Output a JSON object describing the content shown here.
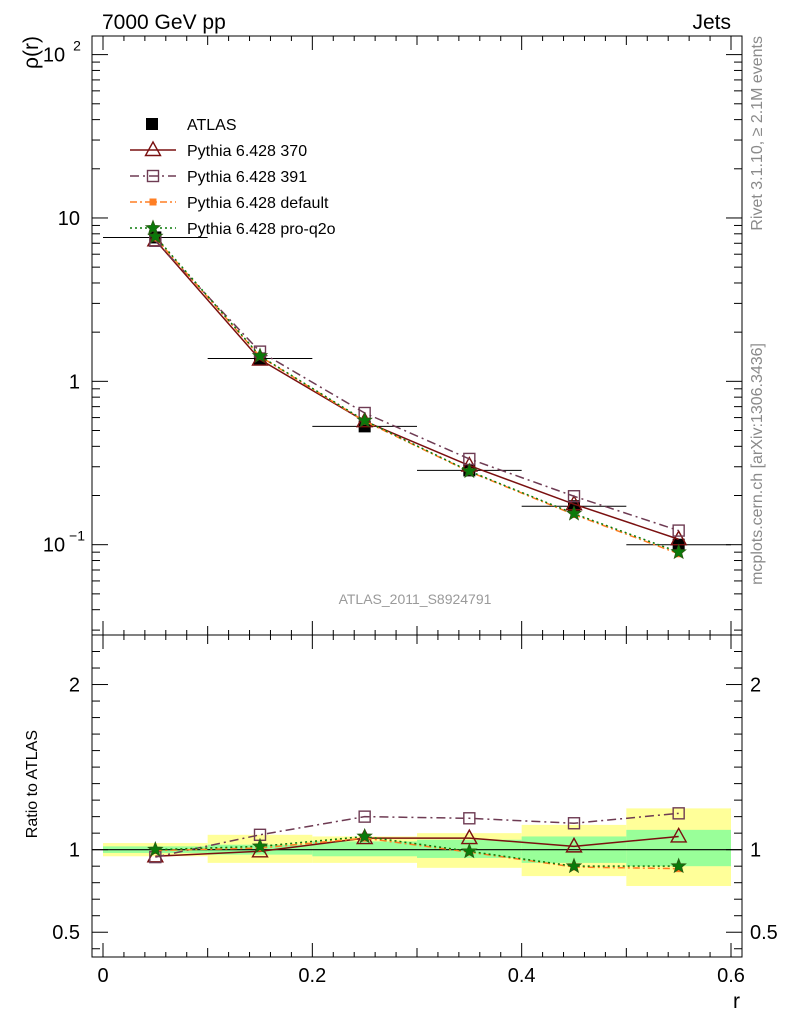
{
  "header": {
    "left": "7000 GeV pp",
    "right": "Jets"
  },
  "side": {
    "rivet": "Rivet 3.1.10, ≥ 2.1M events",
    "mcplots": "mcplots.cern.ch [arXiv:1306.3436]"
  },
  "watermark": "ATLAS_2011_S8924791",
  "colors": {
    "atlas": "#000000",
    "p370": "#7a1010",
    "p391": "#6e3b53",
    "default": "#ff7f24",
    "proq2o": "#0a7a0a",
    "band_green": "#99ff99",
    "band_yellow": "#ffff99"
  },
  "chart_data": [
    {
      "type": "line",
      "ylabel": "ρ(r)",
      "yscale": "log",
      "xlim": [
        0,
        0.6
      ],
      "ylim": [
        0.028,
        130
      ],
      "yticks": [
        {
          "v": 0.1,
          "base": "10",
          "exp": "−1"
        },
        {
          "v": 1,
          "base": "1",
          "exp": ""
        },
        {
          "v": 10,
          "base": "10",
          "exp": ""
        },
        {
          "v": 100,
          "base": "10",
          "exp": "2"
        }
      ],
      "legend": {
        "position": "top-left",
        "entries": [
          "ATLAS",
          "Pythia 6.428 370",
          "Pythia 6.428 391",
          "Pythia 6.428 default",
          "Pythia 6.428 pro-q2o"
        ]
      },
      "x": [
        0.05,
        0.15,
        0.25,
        0.35,
        0.45,
        0.55
      ],
      "data": {
        "name": "ATLAS",
        "y": [
          7.6,
          1.38,
          0.53,
          0.285,
          0.172,
          0.1
        ],
        "xerr": 0.05
      },
      "series": [
        {
          "name": "Pythia 6.428 370",
          "values": [
            7.3,
            1.36,
            0.57,
            0.305,
            0.177,
            0.108
          ]
        },
        {
          "name": "Pythia 6.428 391",
          "values": [
            7.25,
            1.52,
            0.64,
            0.335,
            0.198,
            0.122
          ]
        },
        {
          "name": "Pythia 6.428 default",
          "values": [
            7.55,
            1.42,
            0.57,
            0.28,
            0.153,
            0.088
          ]
        },
        {
          "name": "Pythia 6.428 pro-q2o",
          "values": [
            7.7,
            1.43,
            0.575,
            0.282,
            0.155,
            0.09
          ]
        }
      ]
    },
    {
      "type": "line",
      "ylabel": "Ratio to ATLAS",
      "xlabel": "r",
      "xlim": [
        0,
        0.6
      ],
      "ylim": [
        0.35,
        2.3
      ],
      "xticks": [
        "0",
        "0.2",
        "0.4",
        "0.6"
      ],
      "yticks": [
        "0.5",
        "1",
        "2"
      ],
      "bands": {
        "edges": [
          0,
          0.1,
          0.2,
          0.3,
          0.4,
          0.5,
          0.6
        ],
        "green": [
          [
            0.98,
            1.02
          ],
          [
            0.97,
            1.03
          ],
          [
            0.96,
            1.05
          ],
          [
            0.95,
            1.06
          ],
          [
            0.92,
            1.08
          ],
          [
            0.9,
            1.12
          ]
        ],
        "yellow": [
          [
            0.96,
            1.04
          ],
          [
            0.92,
            1.09
          ],
          [
            0.92,
            1.08
          ],
          [
            0.89,
            1.1
          ],
          [
            0.84,
            1.15
          ],
          [
            0.78,
            1.25
          ]
        ]
      },
      "series": [
        {
          "name": "Pythia 6.428 370",
          "values": [
            0.96,
            0.99,
            1.07,
            1.07,
            1.02,
            1.08
          ]
        },
        {
          "name": "Pythia 6.428 391",
          "values": [
            0.955,
            1.09,
            1.2,
            1.19,
            1.16,
            1.22
          ]
        },
        {
          "name": "Pythia 6.428 default",
          "values": [
            0.995,
            1.01,
            1.07,
            0.985,
            0.895,
            0.885
          ]
        },
        {
          "name": "Pythia 6.428 pro-q2o",
          "values": [
            1.0,
            1.02,
            1.08,
            0.99,
            0.9,
            0.9
          ]
        }
      ]
    }
  ]
}
